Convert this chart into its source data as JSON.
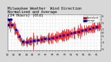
{
  "title": "Milwaukee Weather  Wind Direction",
  "title2": "Normalized and Average",
  "title3": "(24 Hours) (Old)",
  "bg_color": "#d8d8d8",
  "plot_bg_color": "#ffffff",
  "grid_color": "#bbbbbb",
  "bar_color": "#dd0000",
  "avg_color": "#0000cc",
  "ylim": [
    -5.5,
    5.5
  ],
  "yticks": [
    -5,
    -4,
    -3,
    -2,
    -1,
    0,
    1,
    2,
    3,
    4,
    5
  ],
  "ytick_labels": [
    "-5",
    "",
    "-3",
    "",
    "-1",
    "0",
    "1",
    "",
    "3",
    "",
    "5"
  ],
  "n_points": 200,
  "title_fontsize": 4.0,
  "tick_fontsize": 2.8,
  "legend_labels": [
    "Normalized",
    "Average"
  ],
  "legend_colors": [
    "#dd0000",
    "#0000cc"
  ],
  "seed": 77
}
